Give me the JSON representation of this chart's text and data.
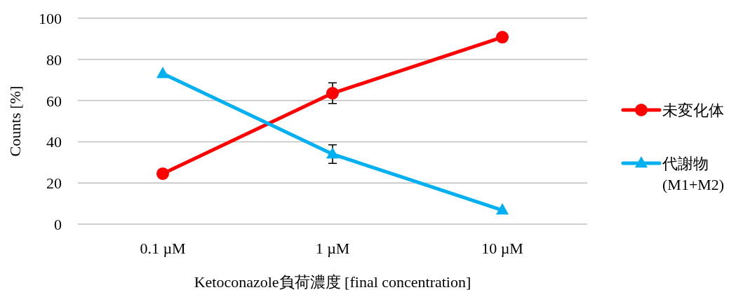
{
  "chart_data": {
    "type": "line",
    "xlabel": "Ketoconazole負荷濃度 [final concentration]",
    "ylabel": "Counts [%]",
    "categories": [
      "0.1 µM",
      "1 µM",
      "10 µM"
    ],
    "series": [
      {
        "name": "未変化体",
        "color": "#ff0000",
        "marker": "circle",
        "values": [
          24.5,
          63.6,
          90.8
        ],
        "errors": [
          null,
          5,
          null
        ]
      },
      {
        "name": "代謝物 (M1+M2)",
        "color": "#00b0f0",
        "marker": "triangle",
        "values": [
          73.1,
          34,
          6.8
        ],
        "errors": [
          null,
          4.5,
          null
        ]
      }
    ],
    "ylim": [
      0,
      100
    ],
    "yticks": [
      0,
      20,
      40,
      60,
      80,
      100
    ],
    "grid": "y",
    "legend": "right"
  }
}
